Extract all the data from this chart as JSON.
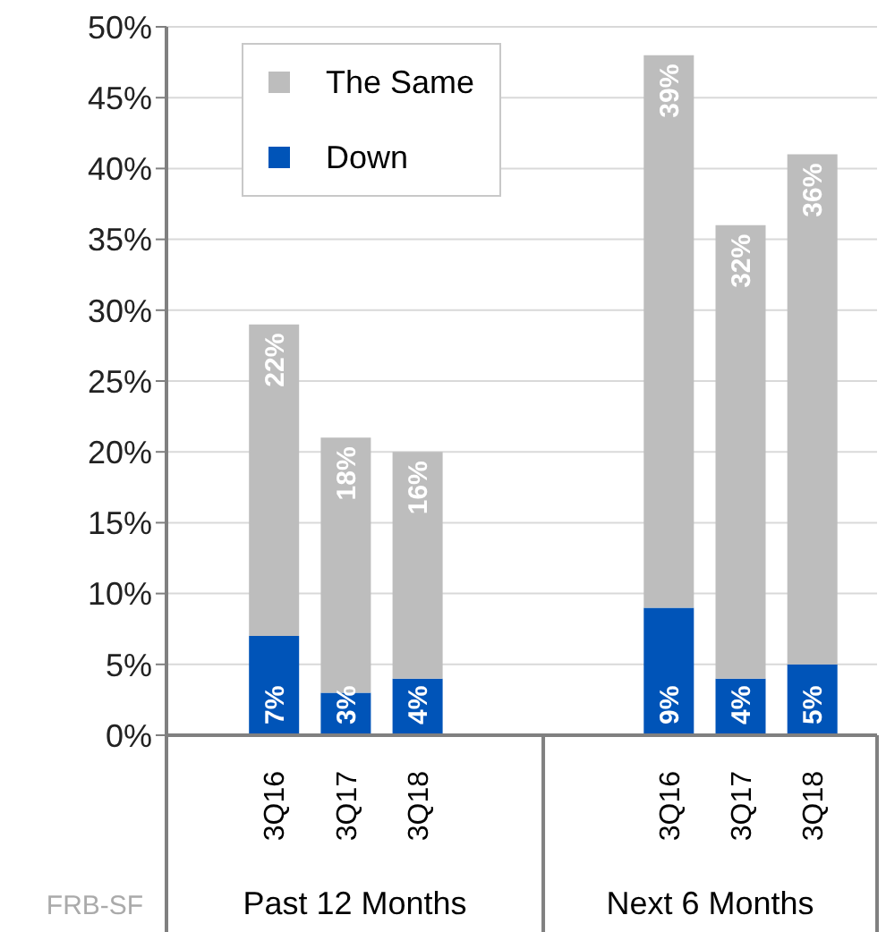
{
  "chart_data": {
    "type": "bar",
    "stacked": true,
    "categories": [
      "3Q16",
      "3Q17",
      "3Q18",
      null,
      "3Q16",
      "3Q17",
      "3Q18"
    ],
    "series": [
      {
        "name": "Down",
        "color": "#0054b8",
        "values": [
          7,
          3,
          4,
          null,
          9,
          4,
          5
        ],
        "value_labels": [
          "7%",
          "3%",
          "4%",
          null,
          "9%",
          "4%",
          "5%"
        ]
      },
      {
        "name": "The Same",
        "color": "#bdbdbd",
        "values": [
          22,
          18,
          16,
          null,
          39,
          32,
          36
        ],
        "value_labels": [
          "22%",
          "18%",
          "16%",
          null,
          "39%",
          "32%",
          "36%"
        ]
      }
    ],
    "ylim": [
      0,
      50
    ],
    "yticks": [
      {
        "value": 0,
        "label": "0%"
      },
      {
        "value": 5,
        "label": "5%"
      },
      {
        "value": 10,
        "label": "10%"
      },
      {
        "value": 15,
        "label": "15%"
      },
      {
        "value": 20,
        "label": "20%"
      },
      {
        "value": 25,
        "label": "25%"
      },
      {
        "value": 30,
        "label": "30%"
      },
      {
        "value": 35,
        "label": "35%"
      },
      {
        "value": 40,
        "label": "40%"
      },
      {
        "value": 45,
        "label": "45%"
      },
      {
        "value": 50,
        "label": "50%"
      }
    ],
    "grid": "y",
    "legend": "top left",
    "annotations": [
      "Past 12 Months",
      "Next 6 Months",
      "FRB-SF"
    ]
  }
}
